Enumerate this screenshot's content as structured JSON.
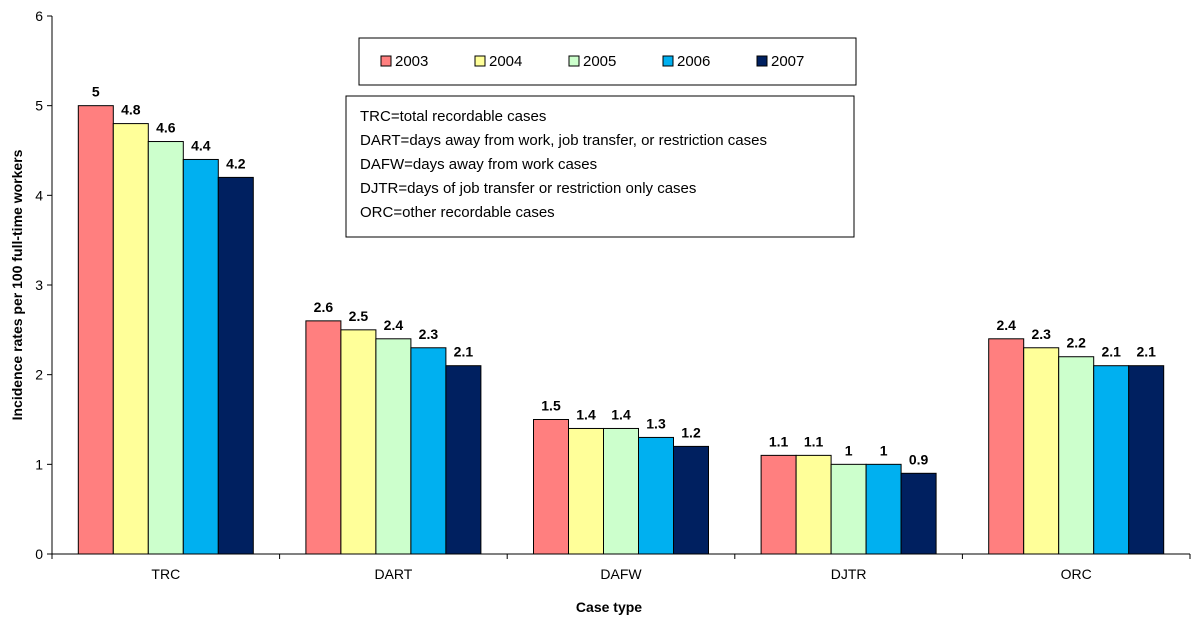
{
  "chart_data": {
    "type": "bar",
    "categories": [
      "TRC",
      "DART",
      "DAFW",
      "DJTR",
      "ORC"
    ],
    "series": [
      {
        "name": "2003",
        "values": [
          5,
          2.6,
          1.5,
          1.1,
          2.4
        ],
        "color": "#ff7f7f"
      },
      {
        "name": "2004",
        "values": [
          4.8,
          2.5,
          1.4,
          1.1,
          2.3
        ],
        "color": "#ffff99"
      },
      {
        "name": "2005",
        "values": [
          4.6,
          2.4,
          1.4,
          1,
          2.2
        ],
        "color": "#ccffcc"
      },
      {
        "name": "2006",
        "values": [
          4.4,
          2.3,
          1.3,
          1,
          2.1
        ],
        "color": "#00b0f0"
      },
      {
        "name": "2007",
        "values": [
          4.2,
          2.1,
          1.2,
          0.9,
          2.1
        ],
        "color": "#002060"
      }
    ],
    "xlabel": "Case type",
    "ylabel": "Incidence rates per 100 full-time workers",
    "ylim": [
      0,
      6
    ],
    "yticks": [
      0,
      1,
      2,
      3,
      4,
      5,
      6
    ],
    "grid": false,
    "legend_position": "top-center",
    "notes": [
      "TRC=total recordable cases",
      "DART=days away from work, job transfer, or restriction cases",
      "DAFW=days away from work cases",
      "DJTR=days of job transfer or restriction only cases",
      "ORC=other recordable cases"
    ]
  }
}
